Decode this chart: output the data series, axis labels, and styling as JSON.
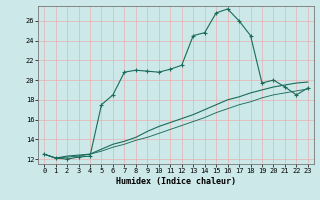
{
  "xlabel": "Humidex (Indice chaleur)",
  "bg_color": "#cce8e8",
  "grid_color": "#e8b0b0",
  "line_color": "#1a6b5a",
  "xlim": [
    -0.5,
    23.5
  ],
  "ylim": [
    11.5,
    27.5
  ],
  "xticks": [
    0,
    1,
    2,
    3,
    4,
    5,
    6,
    7,
    8,
    9,
    10,
    11,
    12,
    13,
    14,
    15,
    16,
    17,
    18,
    19,
    20,
    21,
    22,
    23
  ],
  "yticks": [
    12,
    14,
    16,
    18,
    20,
    22,
    24,
    26
  ],
  "series1_x": [
    0,
    1,
    2,
    3,
    4,
    5,
    6,
    7,
    8,
    9,
    10,
    11,
    12,
    13,
    14,
    15,
    16,
    17,
    18,
    19,
    20,
    21,
    22,
    23
  ],
  "series1_y": [
    12.5,
    12.1,
    12.0,
    12.2,
    12.3,
    17.5,
    18.5,
    20.8,
    21.0,
    20.9,
    20.8,
    21.1,
    21.5,
    24.5,
    24.8,
    26.8,
    27.2,
    26.0,
    24.5,
    19.7,
    20.0,
    19.3,
    18.5,
    19.2
  ],
  "series2_x": [
    0,
    1,
    2,
    3,
    4,
    5,
    6,
    7,
    8,
    9,
    10,
    11,
    12,
    13,
    14,
    15,
    16,
    17,
    18,
    19,
    20,
    21,
    22,
    23
  ],
  "series2_y": [
    12.5,
    12.1,
    12.3,
    12.4,
    12.5,
    13.0,
    13.5,
    13.8,
    14.2,
    14.8,
    15.3,
    15.7,
    16.1,
    16.5,
    17.0,
    17.5,
    18.0,
    18.3,
    18.7,
    19.0,
    19.3,
    19.5,
    19.7,
    19.8
  ],
  "series3_x": [
    0,
    1,
    2,
    3,
    4,
    5,
    6,
    7,
    8,
    9,
    10,
    11,
    12,
    13,
    14,
    15,
    16,
    17,
    18,
    19,
    20,
    21,
    22,
    23
  ],
  "series3_y": [
    12.5,
    12.1,
    12.2,
    12.3,
    12.5,
    12.8,
    13.2,
    13.5,
    13.9,
    14.2,
    14.6,
    15.0,
    15.4,
    15.8,
    16.2,
    16.7,
    17.1,
    17.5,
    17.8,
    18.2,
    18.5,
    18.7,
    18.9,
    19.1
  ],
  "tick_fontsize": 5,
  "xlabel_fontsize": 6,
  "marker_size": 3,
  "linewidth": 0.8
}
